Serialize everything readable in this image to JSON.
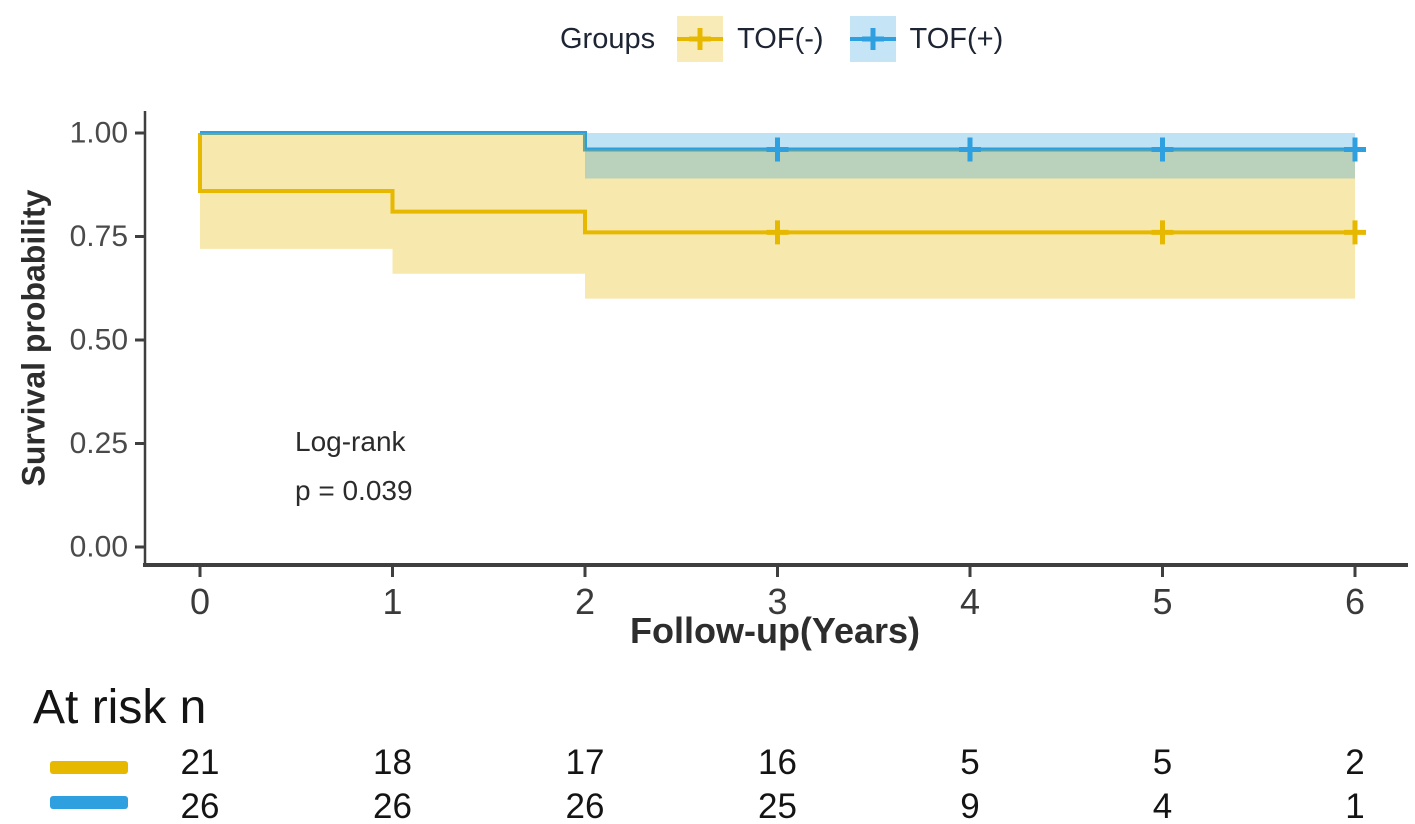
{
  "legend": {
    "title": "Groups",
    "items": [
      {
        "id": "tof-minus",
        "label": "TOF(-)",
        "color": "#E7B800"
      },
      {
        "id": "tof-plus",
        "label": "TOF(+)",
        "color": "#2E9FDF"
      }
    ]
  },
  "chart_data": {
    "type": "line",
    "subtype": "kaplan-meier-step",
    "title": "",
    "xlabel": "Follow-up(Years)",
    "ylabel": "Survival probability",
    "xlim": [
      0,
      6
    ],
    "ylim": [
      0,
      1
    ],
    "xticks": [
      0,
      1,
      2,
      3,
      4,
      5,
      6
    ],
    "yticks": [
      "0.00",
      "0.25",
      "0.50",
      "0.75",
      "1.00"
    ],
    "grid": false,
    "legend_position": "top",
    "annotation": {
      "line1": "Log-rank",
      "line2": "p = 0.039"
    },
    "series": [
      {
        "name": "TOF(-)",
        "color": "#E7B800",
        "steps": [
          [
            0,
            1.0
          ],
          [
            0,
            0.86
          ],
          [
            1,
            0.86
          ],
          [
            1,
            0.81
          ],
          [
            2,
            0.81
          ],
          [
            2,
            0.76
          ],
          [
            6,
            0.76
          ]
        ],
        "censors": [
          [
            3,
            0.76
          ],
          [
            5,
            0.76
          ],
          [
            6,
            0.76
          ]
        ],
        "ci": [
          {
            "x0": 0,
            "x1": 1,
            "lo": 0.72,
            "hi": 1.0
          },
          {
            "x0": 1,
            "x1": 2,
            "lo": 0.66,
            "hi": 1.0
          },
          {
            "x0": 2,
            "x1": 6,
            "lo": 0.6,
            "hi": 0.96
          }
        ]
      },
      {
        "name": "TOF(+)",
        "color": "#2E9FDF",
        "steps": [
          [
            0,
            1.0
          ],
          [
            2,
            1.0
          ],
          [
            2,
            0.96
          ],
          [
            6,
            0.96
          ]
        ],
        "censors": [
          [
            3,
            0.96
          ],
          [
            4,
            0.96
          ],
          [
            5,
            0.96
          ],
          [
            6,
            0.96
          ]
        ],
        "ci": [
          {
            "x0": 2,
            "x1": 6,
            "lo": 0.89,
            "hi": 1.0
          }
        ]
      }
    ]
  },
  "risk_table": {
    "title": "At risk n",
    "time_points": [
      0,
      1,
      2,
      3,
      4,
      5,
      6
    ],
    "rows": [
      {
        "group": "TOF(-)",
        "color": "#E7B800",
        "counts": [
          21,
          18,
          17,
          16,
          5,
          5,
          2
        ]
      },
      {
        "group": "TOF(+)",
        "color": "#2E9FDF",
        "counts": [
          26,
          26,
          26,
          25,
          9,
          4,
          1
        ]
      }
    ]
  }
}
